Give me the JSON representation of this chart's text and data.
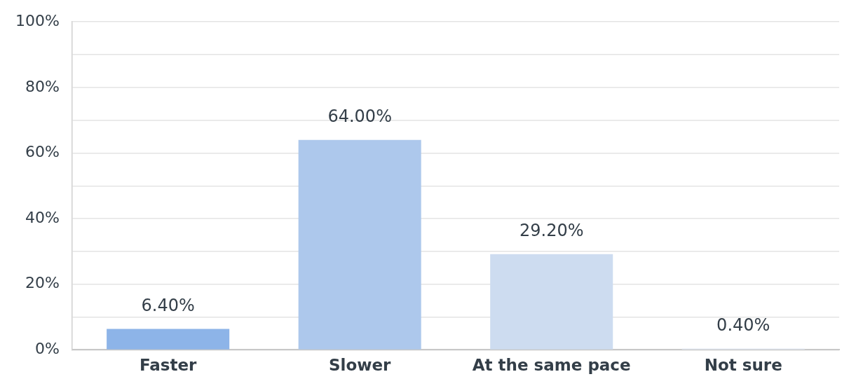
{
  "chart_data": {
    "type": "bar",
    "categories": [
      "Faster",
      "Slower",
      "At the same pace",
      "Not sure"
    ],
    "values": [
      6.4,
      64.0,
      29.2,
      0.4
    ],
    "colors": [
      "#8db4e8",
      "#adc8ec",
      "#cddcf0",
      "#e3eaf5"
    ],
    "value_labels": [
      "6.40%",
      "64.00%",
      "29.20%",
      "0.40%"
    ],
    "ylim": [
      0,
      100
    ],
    "yticks": [
      {
        "value": 0,
        "label": "0%"
      },
      {
        "value": 10,
        "label": null
      },
      {
        "value": 20,
        "label": "20%"
      },
      {
        "value": 30,
        "label": null
      },
      {
        "value": 40,
        "label": "40%"
      },
      {
        "value": 50,
        "label": null
      },
      {
        "value": 60,
        "label": "60%"
      },
      {
        "value": 70,
        "label": null
      },
      {
        "value": 80,
        "label": "80%"
      },
      {
        "value": 90,
        "label": null
      },
      {
        "value": 100,
        "label": "100%"
      }
    ],
    "grid": "y",
    "legend": false
  }
}
